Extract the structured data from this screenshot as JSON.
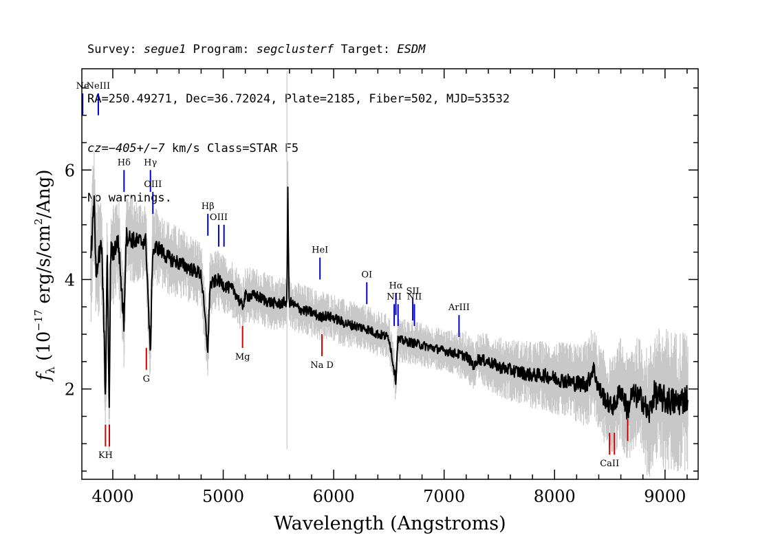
{
  "header": {
    "line1": [
      {
        "t": "Survey: ",
        "i": false
      },
      {
        "t": "segue1",
        "i": true
      },
      {
        "t": " Program: ",
        "i": false
      },
      {
        "t": "segclusterf",
        "i": true
      },
      {
        "t": " Target: ",
        "i": false
      },
      {
        "t": "ESDM",
        "i": true
      }
    ],
    "line2": "RA=250.49271, Dec=36.72024, Plate=2185, Fiber=502, MJD=53532",
    "line3": [
      {
        "t": "cz=",
        "i": true
      },
      {
        "t": "−405+/−7",
        "i": true
      },
      {
        "t": " km/s Class=STAR F5",
        "i": false
      }
    ],
    "line4": "No warnings."
  },
  "chart_data": {
    "type": "line",
    "xlabel": "Wavelength (Angstroms)",
    "ylabel": "f_λ (10^-17 erg/s/cm^2/Ang)",
    "xlim": [
      3720,
      9300
    ],
    "ylim": [
      0.35,
      7.85
    ],
    "xticks": [
      4000,
      5000,
      6000,
      7000,
      8000,
      9000
    ],
    "yticks": [
      2,
      4,
      6
    ],
    "series": [
      {
        "role": "flux",
        "color": "#000000",
        "points": [
          [
            3800,
            4.3
          ],
          [
            3830,
            5.4
          ],
          [
            3850,
            4.2
          ],
          [
            3900,
            4.6
          ],
          [
            3935,
            1.9
          ],
          [
            3950,
            4.6
          ],
          [
            3968,
            1.5
          ],
          [
            3980,
            4.5
          ],
          [
            4000,
            4.5
          ],
          [
            4050,
            4.7
          ],
          [
            4101,
            3.2
          ],
          [
            4120,
            4.8
          ],
          [
            4200,
            4.7
          ],
          [
            4300,
            4.7
          ],
          [
            4340,
            2.6
          ],
          [
            4360,
            4.5
          ],
          [
            4400,
            4.6
          ],
          [
            4500,
            4.4
          ],
          [
            4600,
            4.3
          ],
          [
            4700,
            4.2
          ],
          [
            4800,
            4.1
          ],
          [
            4861,
            2.7
          ],
          [
            4880,
            3.9
          ],
          [
            4950,
            4.0
          ],
          [
            5000,
            3.9
          ],
          [
            5100,
            3.8
          ],
          [
            5172,
            3.5
          ],
          [
            5200,
            3.7
          ],
          [
            5300,
            3.7
          ],
          [
            5400,
            3.6
          ],
          [
            5500,
            3.55
          ],
          [
            5577,
            3.6
          ],
          [
            5585,
            5.7
          ],
          [
            5595,
            3.6
          ],
          [
            5700,
            3.45
          ],
          [
            5800,
            3.4
          ],
          [
            5890,
            3.3
          ],
          [
            5900,
            3.35
          ],
          [
            6000,
            3.3
          ],
          [
            6100,
            3.2
          ],
          [
            6200,
            3.15
          ],
          [
            6300,
            3.1
          ],
          [
            6400,
            3.0
          ],
          [
            6500,
            2.95
          ],
          [
            6563,
            2.15
          ],
          [
            6580,
            2.9
          ],
          [
            6700,
            2.85
          ],
          [
            6800,
            2.8
          ],
          [
            6900,
            2.75
          ],
          [
            7000,
            2.7
          ],
          [
            7100,
            2.65
          ],
          [
            7200,
            2.6
          ],
          [
            7280,
            2.4
          ],
          [
            7300,
            2.55
          ],
          [
            7400,
            2.5
          ],
          [
            7500,
            2.4
          ],
          [
            7600,
            2.35
          ],
          [
            7700,
            2.3
          ],
          [
            7800,
            2.25
          ],
          [
            7900,
            2.25
          ],
          [
            8000,
            2.2
          ],
          [
            8100,
            2.15
          ],
          [
            8200,
            2.1
          ],
          [
            8300,
            2.1
          ],
          [
            8350,
            2.4
          ],
          [
            8400,
            2.0
          ],
          [
            8498,
            1.7
          ],
          [
            8542,
            1.7
          ],
          [
            8600,
            2.0
          ],
          [
            8662,
            1.6
          ],
          [
            8700,
            1.9
          ],
          [
            8800,
            1.8
          ],
          [
            8850,
            1.5
          ],
          [
            8900,
            1.9
          ],
          [
            9000,
            1.8
          ],
          [
            9100,
            1.75
          ],
          [
            9210,
            1.85
          ]
        ]
      },
      {
        "role": "error",
        "color": "#c8c8c8",
        "sigma": [
          [
            3800,
            0.55
          ],
          [
            4200,
            0.35
          ],
          [
            5000,
            0.25
          ],
          [
            6000,
            0.2
          ],
          [
            7000,
            0.18
          ],
          [
            7500,
            0.25
          ],
          [
            8000,
            0.3
          ],
          [
            8500,
            0.4
          ],
          [
            9000,
            0.6
          ],
          [
            9210,
            0.6
          ]
        ]
      }
    ],
    "annotations": {
      "emission": [
        {
          "label": "Ne",
          "w": 3727,
          "y_top": 7.4,
          "y_bot": 7.0,
          "color": "#0000cc"
        },
        {
          "label": "NeIII",
          "w": 3869,
          "y_top": 7.4,
          "y_bot": 7.0,
          "color": "#0000cc"
        },
        {
          "label": "Hδ",
          "w": 4102,
          "y_top": 6.0,
          "y_bot": 5.6,
          "color": "#0000cc"
        },
        {
          "label": "Hγ",
          "w": 4341,
          "y_top": 6.0,
          "y_bot": 5.6,
          "color": "#0000cc"
        },
        {
          "label": "OIII",
          "w": 4363,
          "y_top": 5.6,
          "y_bot": 5.2,
          "color": "#0000cc"
        },
        {
          "label": "Hβ",
          "w": 4861,
          "y_top": 5.2,
          "y_bot": 4.8,
          "color": "#0000cc"
        },
        {
          "label": "OIII",
          "w": 4959,
          "y_top": 5.0,
          "y_bot": 4.6,
          "color": "#0000cc"
        },
        {
          "label": "",
          "w": 5007,
          "y_top": 5.0,
          "y_bot": 4.6,
          "color": "#0000cc"
        },
        {
          "label": "HeI",
          "w": 5876,
          "y_top": 4.4,
          "y_bot": 4.0,
          "color": "#0000cc"
        },
        {
          "label": "OI",
          "w": 6300,
          "y_top": 3.95,
          "y_bot": 3.55,
          "color": "#0000cc"
        },
        {
          "label": "NII",
          "w": 6548,
          "y_top": 3.55,
          "y_bot": 3.15,
          "color": "#0000cc"
        },
        {
          "label": "Hα",
          "w": 6563,
          "y_top": 3.75,
          "y_bot": 3.35,
          "color": "#0000cc"
        },
        {
          "label": "",
          "w": 6583,
          "y_top": 3.55,
          "y_bot": 3.15,
          "color": "#0000cc"
        },
        {
          "label": "SII",
          "w": 6716,
          "y_top": 3.65,
          "y_bot": 3.25,
          "color": "#0000cc"
        },
        {
          "label": "NII",
          "w": 6731,
          "y_top": 3.55,
          "y_bot": 3.15,
          "color": "#0000cc"
        },
        {
          "label": "ArIII",
          "w": 7135,
          "y_top": 3.35,
          "y_bot": 2.95,
          "color": "#0000cc"
        }
      ],
      "absorption": [
        {
          "label": "KH",
          "w": 3934,
          "y_top": 1.35,
          "y_bot": 0.95,
          "color": "#cc0000"
        },
        {
          "label": "",
          "w": 3969,
          "y_top": 1.35,
          "y_bot": 0.95,
          "color": "#cc0000"
        },
        {
          "label": "G",
          "w": 4304,
          "y_top": 2.75,
          "y_bot": 2.35,
          "color": "#cc0000"
        },
        {
          "label": "Mg",
          "w": 5175,
          "y_top": 3.15,
          "y_bot": 2.75,
          "color": "#cc0000"
        },
        {
          "label": "Na  D",
          "w": 5894,
          "y_top": 3.0,
          "y_bot": 2.6,
          "color": "#cc0000"
        },
        {
          "label": "CaII",
          "w": 8498,
          "y_top": 1.2,
          "y_bot": 0.8,
          "color": "#cc0000"
        },
        {
          "label": "",
          "w": 8542,
          "y_top": 1.2,
          "y_bot": 0.8,
          "color": "#cc0000"
        },
        {
          "label": "",
          "w": 8662,
          "y_top": 1.45,
          "y_bot": 1.05,
          "color": "#cc0000"
        }
      ]
    },
    "grid": false,
    "legend": "none"
  }
}
